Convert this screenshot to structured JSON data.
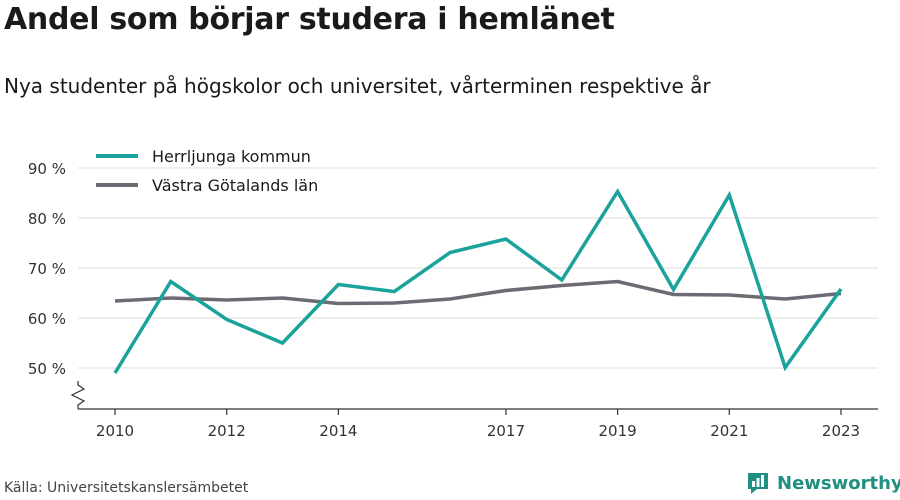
{
  "title": "Andel som börjar studera i hemlänet",
  "subtitle": "Nya studenter på högskolor och universitet, vårterminen respektive år",
  "source": "Källa: Universitetskanslersämbetet",
  "brand": {
    "name": "Newsworthy",
    "icon": "bar-chart-icon"
  },
  "colors": {
    "herrljunga": "#1aa39a",
    "vastra_gotaland": "#6c6b73",
    "grid": "#dddddd",
    "axis": "#333333",
    "brand": "#1f8f83"
  },
  "chart_data": {
    "type": "line",
    "x": [
      2010,
      2011,
      2012,
      2013,
      2014,
      2015,
      2016,
      2017,
      2018,
      2019,
      2020,
      2021,
      2022,
      2023
    ],
    "xticks": [
      2010,
      2012,
      2014,
      2017,
      2019,
      2021,
      2023
    ],
    "xlim": [
      2010,
      2023
    ],
    "ylim": [
      50,
      90
    ],
    "yticks": [
      50,
      60,
      70,
      80,
      90
    ],
    "ytick_labels": [
      "50 %",
      "60 %",
      "70 %",
      "80 %",
      "90 %"
    ],
    "ylabel": "",
    "xlabel": "",
    "grid": true,
    "legend_position": "top-left",
    "y_axis_break": true,
    "series": [
      {
        "name": "Herrljunga kommun",
        "color": "#1aa39a",
        "values": [
          49,
          67.3,
          59.7,
          55,
          66.7,
          65.3,
          73.1,
          75.8,
          67.6,
          85.3,
          65.7,
          84.6,
          50.1,
          65.8
        ]
      },
      {
        "name": "Västra Götalands län",
        "color": "#6c6b73",
        "values": [
          63.4,
          64,
          63.6,
          64,
          62.9,
          63,
          63.8,
          65.5,
          66.5,
          67.3,
          64.7,
          64.6,
          63.8,
          64.9
        ]
      }
    ]
  }
}
